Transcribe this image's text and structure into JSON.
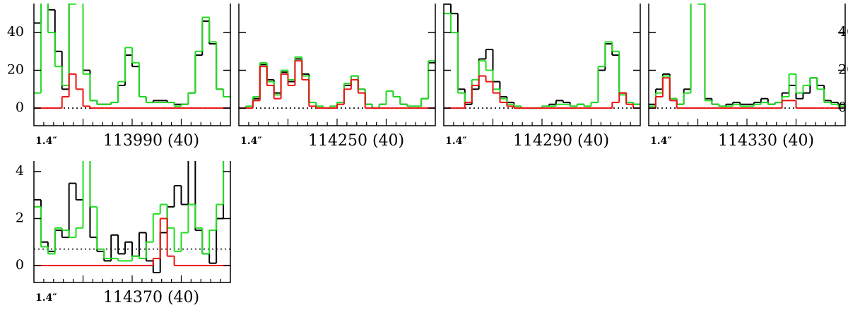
{
  "chart_data": [
    {
      "type": "line",
      "corner_label": "1.4″",
      "title": "113990 (40)",
      "ylim": [
        -9.3,
        55.3
      ],
      "yticks": [
        0,
        20,
        40
      ],
      "ytick_labels": "left",
      "reference_line": 0,
      "series": [
        {
          "color": "#000000",
          "values": [
            45,
            60,
            52,
            30,
            10,
            60,
            60,
            20,
            4,
            2,
            2,
            3,
            12,
            28,
            22,
            6,
            3,
            4,
            4,
            3,
            2,
            2,
            8,
            28,
            46,
            34,
            10,
            6
          ]
        },
        {
          "color": "#22dd22",
          "values": [
            8,
            60,
            40,
            22,
            12,
            55,
            60,
            18,
            4,
            2,
            2,
            3,
            14,
            32,
            24,
            6,
            3,
            3,
            3,
            3,
            1,
            2,
            8,
            30,
            48,
            35,
            10,
            6
          ]
        },
        {
          "color": "#ee1111",
          "values": [
            0,
            0,
            0,
            0,
            6,
            18,
            10,
            1,
            0,
            0,
            0,
            0,
            0,
            0,
            0,
            0,
            0,
            0,
            0,
            0,
            0,
            0,
            0,
            0,
            0,
            0,
            0,
            0
          ]
        }
      ]
    },
    {
      "type": "line",
      "corner_label": "1.4″",
      "title": "114250 (40)",
      "ylim": [
        -9.3,
        55.3
      ],
      "yticks": [
        0,
        20,
        40
      ],
      "ytick_labels": "none",
      "reference_line": 0,
      "series": [
        {
          "color": "#000000",
          "values": [
            0,
            1,
            5,
            23,
            15,
            8,
            19,
            14,
            26,
            18,
            3,
            1,
            0,
            1,
            3,
            12,
            17,
            10,
            2,
            0,
            2,
            9,
            6,
            2,
            1,
            1,
            5,
            24
          ]
        },
        {
          "color": "#22dd22",
          "values": [
            0,
            1,
            6,
            24,
            14,
            7,
            20,
            15,
            27,
            17,
            3,
            1,
            0,
            1,
            3,
            13,
            17,
            10,
            2,
            0,
            2,
            9,
            6,
            2,
            1,
            1,
            5,
            25
          ]
        },
        {
          "color": "#ee1111",
          "values": [
            0,
            0,
            4,
            22,
            12,
            5,
            18,
            12,
            25,
            15,
            1,
            0,
            0,
            0,
            2,
            10,
            15,
            8,
            0,
            0,
            0,
            0,
            0,
            0,
            0,
            0,
            0,
            0
          ]
        }
      ]
    },
    {
      "type": "line",
      "corner_label": "1.4″",
      "title": "114290 (40)",
      "ylim": [
        -9.3,
        55.3
      ],
      "yticks": [
        0,
        20,
        40
      ],
      "ytick_labels": "none",
      "reference_line": 0,
      "series": [
        {
          "color": "#000000",
          "values": [
            55,
            50,
            10,
            2,
            10,
            26,
            31,
            14,
            6,
            3,
            1,
            0,
            0,
            0,
            1,
            2,
            4,
            3,
            1,
            2,
            1,
            3,
            20,
            34,
            28,
            8,
            3,
            2
          ]
        },
        {
          "color": "#22dd22",
          "values": [
            50,
            40,
            8,
            3,
            15,
            25,
            20,
            10,
            5,
            2,
            1,
            0,
            0,
            0,
            1,
            1,
            2,
            2,
            1,
            2,
            1,
            3,
            22,
            35,
            30,
            7,
            3,
            2
          ]
        },
        {
          "color": "#ee1111",
          "values": [
            0,
            0,
            0,
            3,
            12,
            17,
            14,
            8,
            3,
            1,
            0,
            0,
            0,
            0,
            0,
            0,
            0,
            0,
            0,
            0,
            0,
            0,
            0,
            0,
            3,
            8,
            2,
            0
          ]
        }
      ]
    },
    {
      "type": "line",
      "corner_label": "1.4″",
      "title": "114330 (40)",
      "ylim": [
        -9.3,
        55.3
      ],
      "yticks": [
        0,
        20,
        40
      ],
      "ytick_labels": "right",
      "reference_line": 0,
      "series": [
        {
          "color": "#000000",
          "values": [
            2,
            10,
            18,
            5,
            2,
            10,
            60,
            60,
            5,
            2,
            1,
            2,
            3,
            2,
            2,
            3,
            5,
            2,
            3,
            8,
            12,
            5,
            8,
            16,
            12,
            4,
            3,
            2
          ]
        },
        {
          "color": "#22dd22",
          "values": [
            1,
            8,
            17,
            5,
            2,
            8,
            60,
            55,
            4,
            2,
            1,
            1,
            2,
            1,
            1,
            2,
            3,
            2,
            3,
            6,
            18,
            8,
            12,
            16,
            10,
            3,
            2,
            1
          ]
        },
        {
          "color": "#ee1111",
          "values": [
            0,
            6,
            16,
            4,
            0,
            0,
            0,
            0,
            0,
            0,
            0,
            0,
            0,
            0,
            0,
            0,
            0,
            0,
            0,
            4,
            4,
            0,
            0,
            0,
            0,
            0,
            0,
            0
          ]
        }
      ]
    },
    {
      "type": "line",
      "corner_label": "1.4″",
      "title": "114370 (40)",
      "ylim": [
        -0.72,
        4.45
      ],
      "yticks": [
        0,
        2,
        4
      ],
      "ytick_labels": "left",
      "reference_line": 0.7,
      "series": [
        {
          "color": "#000000",
          "values": [
            2.8,
            1,
            0.6,
            1.5,
            1.2,
            3.5,
            2.8,
            5,
            1.2,
            0.6,
            0.2,
            1.3,
            0.5,
            1,
            0.4,
            1.4,
            0.2,
            -0.3,
            1.4,
            2.5,
            3.4,
            2.6,
            5,
            1.5,
            0.5,
            0.1,
            2,
            5
          ]
        },
        {
          "color": "#22dd22",
          "values": [
            2.5,
            0.8,
            0.5,
            1.6,
            1.5,
            1.2,
            1.6,
            5,
            2.5,
            0.7,
            0.3,
            0.3,
            0.2,
            0.2,
            0.4,
            0.3,
            1,
            2.2,
            2.6,
            1.6,
            0.6,
            1.4,
            2.6,
            1.6,
            0.5,
            1.5,
            2.6,
            4.5
          ]
        },
        {
          "color": "#ee1111",
          "values": [
            0,
            0,
            0,
            0,
            0,
            0,
            0,
            0,
            0,
            0,
            0,
            0,
            0,
            0,
            0,
            0,
            0,
            0.3,
            2,
            0.4,
            0,
            0,
            0,
            0,
            0,
            0,
            0,
            0
          ]
        }
      ]
    }
  ]
}
